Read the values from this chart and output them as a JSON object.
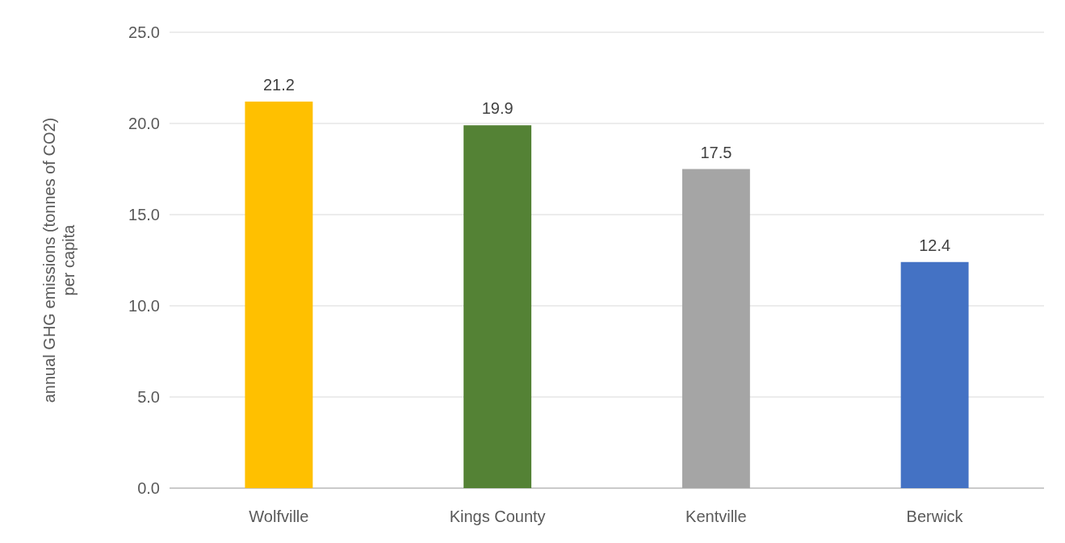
{
  "chart_data": {
    "type": "bar",
    "ylabel": "annual GHG emissions (tonnes of CO2) per capita",
    "categories": [
      "Wolfville",
      "Kings County",
      "Kentville",
      "Berwick"
    ],
    "values": [
      21.2,
      19.9,
      17.5,
      12.4
    ],
    "colors": [
      "#ffc000",
      "#548235",
      "#a5a5a5",
      "#4472c4"
    ],
    "ylim": [
      0,
      25
    ],
    "yticks": [
      {
        "value": 0,
        "label": "0.0"
      },
      {
        "value": 5,
        "label": "5.0"
      },
      {
        "value": 10,
        "label": "10.0"
      },
      {
        "value": 15,
        "label": "15.0"
      },
      {
        "value": 20,
        "label": "20.0"
      },
      {
        "value": 25,
        "label": "25.0"
      }
    ],
    "grid": "y",
    "data_labels": true
  }
}
